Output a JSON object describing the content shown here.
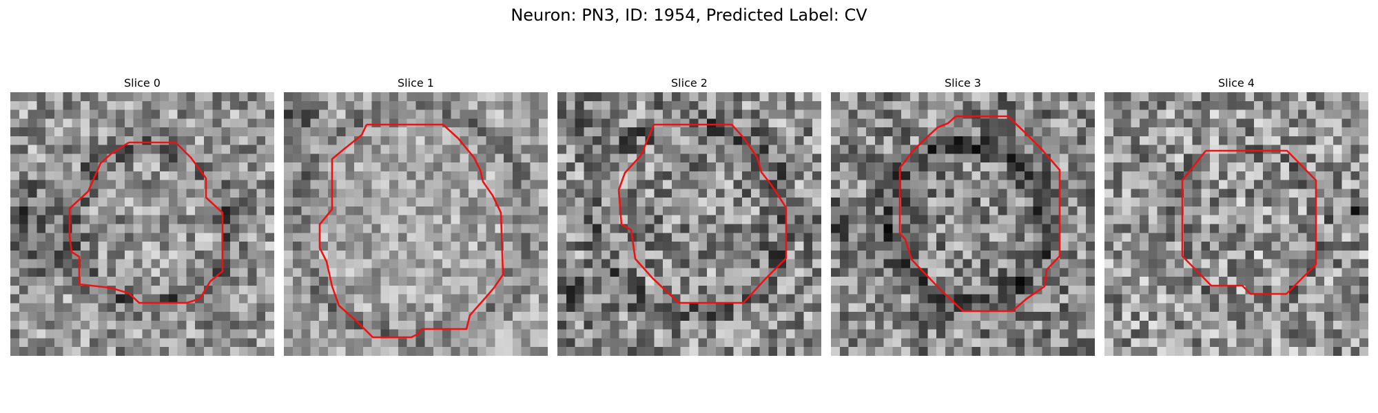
{
  "title": "Neuron: PN3, ID: 1954, Predicted Label: CV",
  "contour_color": "#ee1111",
  "panels": [
    {
      "title": "Slice 0"
    },
    {
      "title": "Slice 1"
    },
    {
      "title": "Slice 2"
    },
    {
      "title": "Slice 3"
    },
    {
      "title": "Slice 4"
    }
  ]
}
